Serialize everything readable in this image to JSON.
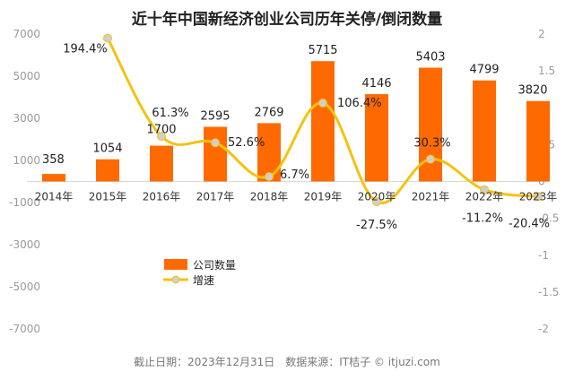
{
  "colors": {
    "bar": "#ff6a00",
    "line": "#f5c211",
    "marker": "#cfcfcf"
  },
  "chart_data": {
    "type": "bar",
    "title": "近十年中国新经济创业公司历年关停/倒闭数量",
    "categories": [
      "2014年",
      "2015年",
      "2016年",
      "2017年",
      "2018年",
      "2019年",
      "2020年",
      "2021年",
      "2022年",
      "2023年"
    ],
    "series": [
      {
        "name": "公司数量",
        "type": "bar",
        "axis": "left",
        "values": [
          358,
          1054,
          1700,
          2595,
          2769,
          5715,
          4146,
          5403,
          4799,
          3820
        ],
        "labels": [
          "358",
          "1054",
          "1700",
          "2595",
          "2769",
          "5715",
          "4146",
          "5403",
          "4799",
          "3820"
        ]
      },
      {
        "name": "增速",
        "type": "line",
        "axis": "right",
        "values": [
          null,
          1.944,
          0.613,
          0.526,
          0.067,
          1.064,
          -0.275,
          0.303,
          -0.112,
          -0.204
        ],
        "labels": [
          "",
          "194.4%",
          "61.3%",
          "52.6%",
          "6.7%",
          "106.4%",
          "-27.5%",
          "30.3%",
          "-11.2%",
          "-20.4%"
        ]
      }
    ],
    "y_left": {
      "min": -7000,
      "max": 7000,
      "ticks": [
        "7000",
        "5000",
        "3000",
        "1000",
        "-1000",
        "-3000",
        "-5000",
        "-7000"
      ]
    },
    "y_right": {
      "min": -2,
      "max": 2,
      "ticks": [
        "2",
        "1.5",
        "1",
        "0.5",
        "0",
        "-0.5",
        "-1",
        "-1.5",
        "-2"
      ]
    },
    "legend": {
      "position": "lower-left"
    },
    "footer": "截止日期：2023年12月31日　数据来源：IT桔子 © itjuzi.com"
  }
}
